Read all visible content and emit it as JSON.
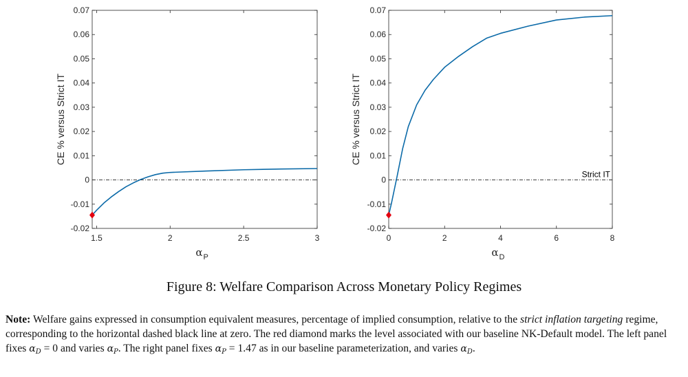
{
  "chart_data": [
    {
      "type": "line",
      "panel": "left",
      "x": [
        1.47,
        1.5,
        1.55,
        1.6,
        1.65,
        1.7,
        1.75,
        1.8,
        1.85,
        1.9,
        1.95,
        2.0,
        2.25,
        2.5,
        2.75,
        3.0
      ],
      "y": [
        -0.0145,
        -0.0125,
        -0.0095,
        -0.007,
        -0.0048,
        -0.0028,
        -0.0012,
        0.0002,
        0.0013,
        0.0022,
        0.0028,
        0.0031,
        0.0037,
        0.0042,
        0.0045,
        0.0047
      ],
      "xlim": [
        1.47,
        3.0
      ],
      "ylim": [
        -0.02,
        0.07
      ],
      "xticks": [
        "1.5",
        "2",
        "2.5",
        "3"
      ],
      "yticks": [
        "-0.02",
        "-0.01",
        "0",
        "0.01",
        "0.02",
        "0.03",
        "0.04",
        "0.05",
        "0.06",
        "0.07"
      ],
      "ylabel": "CE % versus Strict IT",
      "xlabel_symbol": "α",
      "xlabel_sub": "P",
      "reference_line": 0,
      "marker": {
        "x": 1.47,
        "y": -0.0145,
        "shape": "diamond",
        "color": "#e3000f"
      },
      "line_color": "#0b6aa8"
    },
    {
      "type": "line",
      "panel": "right",
      "x": [
        0,
        0.1,
        0.2,
        0.3,
        0.5,
        0.7,
        1.0,
        1.3,
        1.6,
        2.0,
        2.5,
        3.0,
        3.5,
        4.0,
        5.0,
        6.0,
        7.0,
        8.0
      ],
      "y": [
        -0.0145,
        -0.0095,
        -0.004,
        0.0015,
        0.013,
        0.022,
        0.031,
        0.037,
        0.0415,
        0.0465,
        0.051,
        0.055,
        0.0585,
        0.0605,
        0.0635,
        0.066,
        0.0672,
        0.0678
      ],
      "xlim": [
        0,
        8
      ],
      "ylim": [
        -0.02,
        0.07
      ],
      "xticks": [
        "0",
        "2",
        "4",
        "6",
        "8"
      ],
      "yticks": [
        "-0.02",
        "-0.01",
        "0",
        "0.01",
        "0.02",
        "0.03",
        "0.04",
        "0.05",
        "0.06",
        "0.07"
      ],
      "ylabel": "CE % versus Strict IT",
      "xlabel_symbol": "α",
      "xlabel_sub": "D",
      "reference_line": 0,
      "reference_label": "Strict IT",
      "marker": {
        "x": 0,
        "y": -0.0145,
        "shape": "diamond",
        "color": "#e3000f"
      },
      "line_color": "#0b6aa8"
    }
  ],
  "caption": "Figure 8: Welfare Comparison Across Monetary Policy Regimes",
  "note": {
    "label": "Note:",
    "t1": " Welfare gains expressed in consumption equivalent measures, percentage of implied consumption, relative to the ",
    "em": "strict inflation targeting",
    "t2": " regime, corresponding to the horizontal dashed black line at zero. The red diamond marks the level associated with our baseline NK-Default model. The left panel fixes ",
    "m1": "α",
    "m1sub": "D",
    "t3": " = 0 and varies ",
    "m2": "α",
    "m2sub": "P",
    "t4": ". The right panel fixes ",
    "m3": "α",
    "m3sub": "P",
    "t5": " = 1.47 as in our baseline parameterization, and varies ",
    "m4": "α",
    "m4sub": "D",
    "t6": "."
  }
}
